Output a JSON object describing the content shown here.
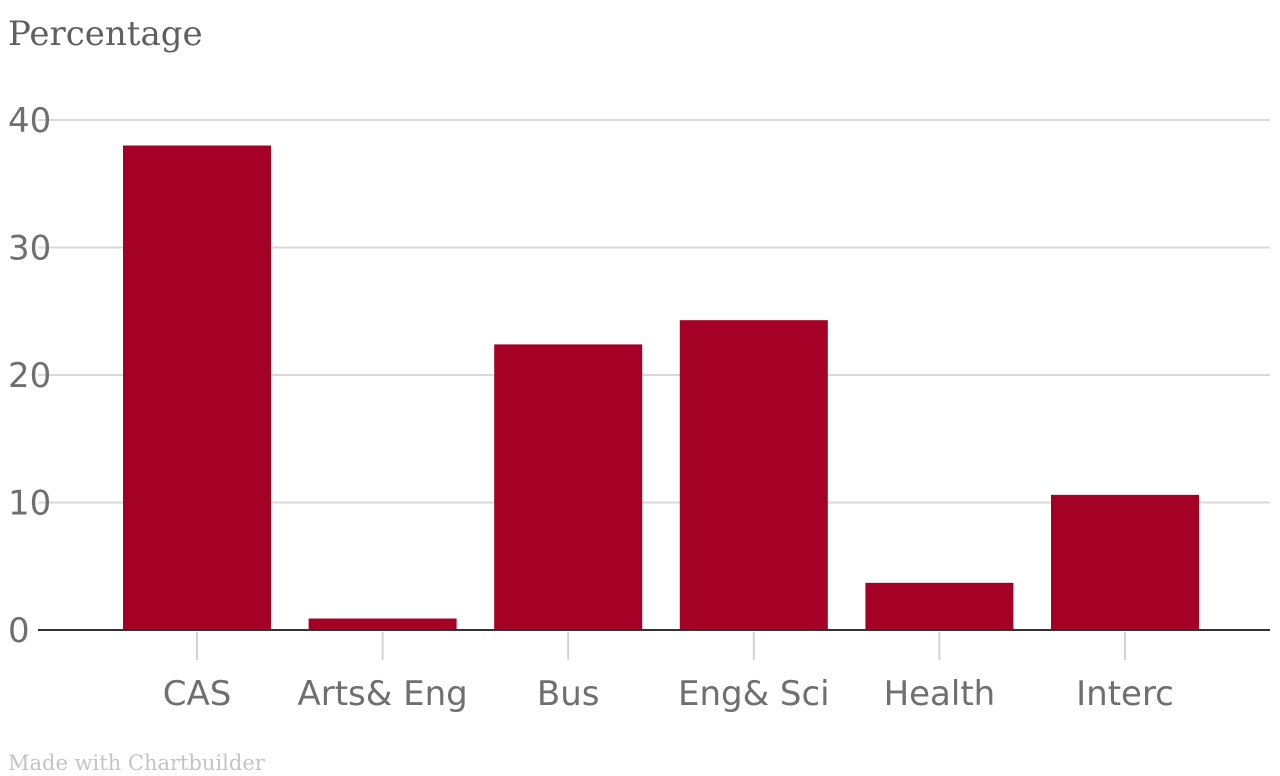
{
  "chart_data": {
    "type": "bar",
    "title": "",
    "ylabel": "Percentage",
    "xlabel": "",
    "categories": [
      "CAS",
      "Arts& Eng",
      "Bus",
      "Eng& Sci",
      "Health",
      "Interc"
    ],
    "values": [
      38,
      0.9,
      22.4,
      24.3,
      3.7,
      10.6
    ],
    "ylim": [
      0,
      40
    ],
    "yticks": [
      0,
      10,
      20,
      30,
      40
    ],
    "grid": true,
    "legend": "none",
    "bar_color": "#a50026"
  },
  "credit": "Made with Chartbuilder"
}
